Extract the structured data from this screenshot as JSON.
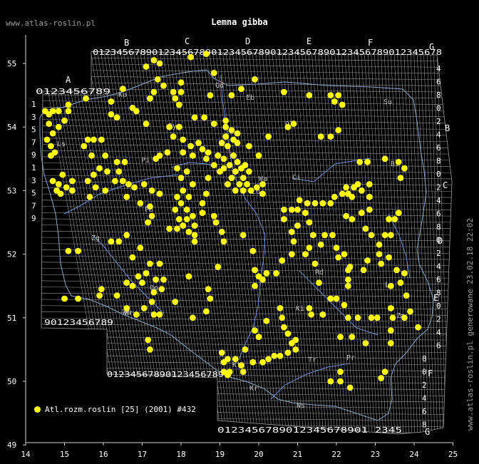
{
  "header": {
    "site": "www.atlas-roslin.pl",
    "title": "Lemna gibba"
  },
  "footer": {
    "generated": "www.atlas-roslin.pl generowane 23.02.18 22:02"
  },
  "legend": {
    "label": "Atl.rozm.roslin [25] (2001) #432"
  },
  "colors": {
    "background": "#000000",
    "grid": "#9a9a9a",
    "border": "#8aa6c8",
    "rivers": "#6f8fd0",
    "dots": "#ffff00",
    "labels": "#cfcfcf"
  },
  "axes": {
    "lon_ticks": [
      "14",
      "15",
      "16",
      "17",
      "18",
      "19",
      "20",
      "21",
      "22",
      "23",
      "24",
      "25"
    ],
    "lat_ticks": [
      "55",
      "54",
      "53",
      "52",
      "51",
      "50",
      "49"
    ]
  },
  "grid_letters": {
    "top": [
      "A",
      "B",
      "C",
      "D",
      "E",
      "F",
      "G"
    ],
    "right": [
      "B",
      "C",
      "D",
      "E",
      "F",
      "G"
    ]
  },
  "grid_digit_rows": {
    "top_A": "0123456789",
    "top_main": "01234567890123456789012345678901234567890123456789012345678",
    "left_A": "1357913579",
    "bottom_west": "90123456789",
    "bottom_B": "01234567890123456789",
    "bottom_south": "0123456789012345678901 2345",
    "right_col": "4680246802468024680246802468"
  },
  "region_labels": [
    "Ko",
    "Gd",
    "Eb",
    "Su",
    "Ol",
    "Bi",
    "Pi",
    "Ci",
    "Ło",
    "Zg",
    "Po",
    "Wr",
    "Ki",
    "Rd",
    "Kt",
    "Kr",
    "Lu",
    "Op",
    "Wb",
    "Ns",
    "Tr",
    "Pr",
    "Zm",
    "By",
    "Wa",
    "Ls"
  ],
  "chart_data": {
    "type": "scatter",
    "x_unit": "degrees east longitude",
    "y_unit": "degrees north latitude",
    "xlim": [
      14,
      25
    ],
    "ylim": [
      49,
      55.5
    ],
    "points": [
      [
        17.3,
        55.05
      ],
      [
        17.45,
        55.0
      ],
      [
        17.1,
        54.95
      ],
      [
        18.25,
        55.1
      ],
      [
        18.65,
        55.15
      ],
      [
        18.85,
        54.85
      ],
      [
        17.4,
        54.75
      ],
      [
        17.3,
        54.55
      ],
      [
        17.55,
        54.65
      ],
      [
        17.8,
        54.55
      ],
      [
        17.2,
        54.45
      ],
      [
        17.85,
        54.45
      ],
      [
        18.0,
        54.55
      ],
      [
        18.0,
        54.7
      ],
      [
        16.5,
        54.6
      ],
      [
        17.95,
        54.35
      ],
      [
        18.75,
        54.5
      ],
      [
        19.3,
        54.5
      ],
      [
        19.55,
        54.6
      ],
      [
        19.9,
        54.75
      ],
      [
        20.65,
        54.55
      ],
      [
        21.3,
        54.5
      ],
      [
        21.85,
        54.5
      ],
      [
        22.05,
        54.5
      ],
      [
        21.95,
        54.4
      ],
      [
        22.15,
        54.35
      ],
      [
        14.6,
        54.2
      ],
      [
        14.5,
        54.25
      ],
      [
        14.7,
        54.25
      ],
      [
        14.85,
        54.25
      ],
      [
        15.0,
        54.1
      ],
      [
        15.1,
        54.25
      ],
      [
        15.1,
        54.35
      ],
      [
        14.6,
        54.05
      ],
      [
        14.85,
        54.0
      ],
      [
        14.7,
        53.9
      ],
      [
        14.55,
        53.8
      ],
      [
        14.65,
        53.7
      ],
      [
        14.75,
        53.6
      ],
      [
        14.65,
        53.55
      ],
      [
        15.55,
        54.45
      ],
      [
        16.2,
        54.4
      ],
      [
        16.2,
        54.2
      ],
      [
        16.35,
        54.15
      ],
      [
        16.75,
        54.3
      ],
      [
        16.85,
        54.25
      ],
      [
        15.6,
        53.8
      ],
      [
        15.75,
        53.8
      ],
      [
        15.95,
        53.8
      ],
      [
        15.5,
        53.7
      ],
      [
        15.7,
        53.55
      ],
      [
        16.05,
        53.55
      ],
      [
        17.1,
        54.05
      ],
      [
        17.7,
        54.0
      ],
      [
        17.95,
        54.0
      ],
      [
        18.35,
        54.15
      ],
      [
        18.6,
        54.15
      ],
      [
        18.85,
        54.05
      ],
      [
        19.15,
        54.1
      ],
      [
        19.15,
        54.0
      ],
      [
        19.3,
        53.95
      ],
      [
        19.45,
        53.9
      ],
      [
        19.15,
        53.85
      ],
      [
        19.35,
        53.8
      ],
      [
        19.05,
        53.75
      ],
      [
        19.2,
        53.7
      ],
      [
        19.45,
        53.75
      ],
      [
        19.75,
        53.7
      ],
      [
        20.0,
        53.55
      ],
      [
        20.25,
        53.85
      ],
      [
        20.75,
        54.0
      ],
      [
        20.9,
        54.05
      ],
      [
        21.6,
        53.85
      ],
      [
        21.85,
        53.85
      ],
      [
        22.05,
        53.95
      ],
      [
        17.8,
        53.85
      ],
      [
        18.05,
        53.8
      ],
      [
        18.25,
        53.7
      ],
      [
        18.45,
        53.75
      ],
      [
        18.55,
        53.65
      ],
      [
        18.05,
        53.6
      ],
      [
        18.3,
        53.55
      ],
      [
        17.65,
        53.6
      ],
      [
        17.45,
        53.55
      ],
      [
        17.35,
        53.5
      ],
      [
        18.7,
        53.6
      ],
      [
        18.95,
        53.55
      ],
      [
        19.1,
        53.5
      ],
      [
        19.35,
        53.55
      ],
      [
        19.45,
        53.45
      ],
      [
        19.25,
        53.4
      ],
      [
        19.1,
        53.35
      ],
      [
        19.4,
        53.3
      ],
      [
        19.55,
        53.35
      ],
      [
        19.65,
        53.4
      ],
      [
        19.75,
        53.3
      ],
      [
        19.6,
        53.2
      ],
      [
        19.5,
        53.1
      ],
      [
        19.3,
        53.2
      ],
      [
        19.2,
        53.1
      ],
      [
        19.4,
        53.0
      ],
      [
        19.6,
        53.0
      ],
      [
        19.8,
        53.0
      ],
      [
        19.95,
        53.05
      ],
      [
        20.1,
        52.95
      ],
      [
        20.1,
        53.1
      ],
      [
        19.7,
        53.1
      ],
      [
        19.0,
        53.3
      ],
      [
        18.85,
        53.4
      ],
      [
        18.65,
        53.5
      ],
      [
        17.9,
        53.35
      ],
      [
        18.0,
        53.2
      ],
      [
        18.15,
        53.3
      ],
      [
        18.3,
        53.1
      ],
      [
        18.05,
        53.0
      ],
      [
        18.2,
        52.9
      ],
      [
        17.9,
        52.9
      ],
      [
        18.0,
        52.8
      ],
      [
        17.85,
        52.7
      ],
      [
        17.95,
        52.55
      ],
      [
        18.15,
        52.7
      ],
      [
        18.15,
        52.55
      ],
      [
        18.3,
        52.6
      ],
      [
        18.35,
        52.45
      ],
      [
        18.2,
        52.35
      ],
      [
        18.05,
        52.45
      ],
      [
        17.9,
        52.4
      ],
      [
        17.7,
        52.4
      ],
      [
        18.35,
        52.3
      ],
      [
        18.35,
        52.2
      ],
      [
        18.7,
        53.2
      ],
      [
        18.65,
        52.95
      ],
      [
        18.55,
        52.8
      ],
      [
        18.55,
        52.65
      ],
      [
        18.85,
        52.6
      ],
      [
        17.05,
        53.1
      ],
      [
        17.25,
        53.0
      ],
      [
        17.45,
        52.95
      ],
      [
        17.2,
        52.75
      ],
      [
        17.25,
        52.6
      ],
      [
        17.15,
        52.5
      ],
      [
        16.95,
        52.8
      ],
      [
        16.8,
        53.05
      ],
      [
        16.65,
        53.1
      ],
      [
        16.4,
        53.3
      ],
      [
        16.35,
        53.45
      ],
      [
        16.55,
        53.45
      ],
      [
        16.5,
        53.15
      ],
      [
        16.1,
        53.3
      ],
      [
        16.05,
        53.0
      ],
      [
        16.6,
        52.9
      ],
      [
        14.7,
        53.15
      ],
      [
        14.85,
        53.1
      ],
      [
        15.05,
        53.05
      ],
      [
        14.8,
        53.0
      ],
      [
        14.9,
        52.95
      ],
      [
        15.2,
        53.0
      ],
      [
        14.95,
        53.25
      ],
      [
        15.2,
        53.15
      ],
      [
        15.6,
        53.15
      ],
      [
        15.75,
        53.25
      ],
      [
        15.9,
        53.35
      ],
      [
        15.8,
        53.05
      ],
      [
        15.65,
        52.9
      ],
      [
        16.3,
        53.15
      ],
      [
        16.2,
        52.2
      ],
      [
        16.4,
        52.2
      ],
      [
        16.6,
        52.3
      ],
      [
        16.75,
        51.95
      ],
      [
        16.95,
        52.1
      ],
      [
        17.2,
        51.85
      ],
      [
        17.45,
        51.85
      ],
      [
        17.1,
        51.7
      ],
      [
        17.35,
        51.6
      ],
      [
        17.55,
        51.6
      ],
      [
        17.0,
        51.55
      ],
      [
        16.9,
        51.65
      ],
      [
        16.75,
        51.5
      ],
      [
        16.6,
        51.55
      ],
      [
        17.3,
        51.4
      ],
      [
        17.5,
        51.45
      ],
      [
        17.25,
        51.25
      ],
      [
        17.05,
        51.15
      ],
      [
        17.3,
        51.05
      ],
      [
        17.45,
        51.05
      ],
      [
        16.85,
        51.05
      ],
      [
        16.6,
        51.15
      ],
      [
        16.35,
        51.35
      ],
      [
        15.9,
        51.35
      ],
      [
        15.95,
        51.45
      ],
      [
        15.0,
        51.3
      ],
      [
        15.35,
        51.3
      ],
      [
        15.1,
        52.05
      ],
      [
        15.35,
        52.05
      ],
      [
        17.15,
        50.65
      ],
      [
        17.2,
        50.5
      ],
      [
        18.3,
        51.0
      ],
      [
        18.65,
        51.1
      ],
      [
        18.75,
        51.3
      ],
      [
        18.7,
        51.45
      ],
      [
        18.2,
        51.65
      ],
      [
        17.85,
        51.25
      ],
      [
        19.05,
        50.45
      ],
      [
        19.1,
        50.3
      ],
      [
        19.2,
        50.35
      ],
      [
        19.4,
        50.35
      ],
      [
        19.55,
        50.25
      ],
      [
        19.6,
        50.15
      ],
      [
        19.1,
        50.15
      ],
      [
        19.2,
        50.1
      ],
      [
        19.25,
        50.15
      ],
      [
        19.85,
        50.3
      ],
      [
        20.1,
        50.3
      ],
      [
        20.25,
        50.35
      ],
      [
        20.4,
        50.4
      ],
      [
        20.55,
        50.4
      ],
      [
        20.75,
        50.45
      ],
      [
        20.95,
        50.5
      ],
      [
        19.65,
        50.5
      ],
      [
        20.0,
        50.7
      ],
      [
        19.9,
        50.8
      ],
      [
        20.2,
        50.95
      ],
      [
        20.6,
        51.0
      ],
      [
        20.65,
        50.85
      ],
      [
        20.75,
        50.75
      ],
      [
        20.85,
        50.6
      ],
      [
        20.95,
        50.65
      ],
      [
        20.55,
        51.15
      ],
      [
        20.1,
        51.6
      ],
      [
        20.6,
        51.9
      ],
      [
        20.85,
        52.0
      ],
      [
        21.2,
        52.0
      ],
      [
        21.3,
        52.1
      ],
      [
        21.45,
        51.85
      ],
      [
        21.55,
        51.55
      ],
      [
        21.3,
        51.15
      ],
      [
        21.35,
        51.05
      ],
      [
        21.65,
        51.05
      ],
      [
        21.85,
        51.3
      ],
      [
        22.0,
        51.3
      ],
      [
        22.2,
        51.2
      ],
      [
        22.3,
        51.0
      ],
      [
        22.55,
        51.0
      ],
      [
        22.9,
        51.0
      ],
      [
        23.05,
        51.0
      ],
      [
        22.1,
        50.7
      ],
      [
        22.4,
        50.7
      ],
      [
        22.75,
        50.6
      ],
      [
        20.85,
        52.35
      ],
      [
        21.0,
        52.45
      ],
      [
        21.2,
        52.65
      ],
      [
        21.3,
        52.5
      ],
      [
        21.4,
        52.3
      ],
      [
        20.65,
        52.55
      ],
      [
        20.65,
        52.7
      ],
      [
        20.85,
        52.7
      ],
      [
        21.0,
        52.7
      ],
      [
        21.05,
        52.85
      ],
      [
        21.25,
        52.8
      ],
      [
        21.45,
        52.8
      ],
      [
        21.65,
        52.8
      ],
      [
        21.85,
        52.8
      ],
      [
        21.95,
        52.9
      ],
      [
        22.15,
        52.95
      ],
      [
        22.3,
        52.95
      ],
      [
        22.4,
        52.9
      ],
      [
        22.25,
        53.05
      ],
      [
        22.45,
        53.05
      ],
      [
        22.65,
        53.0
      ],
      [
        22.85,
        52.9
      ],
      [
        22.85,
        52.7
      ],
      [
        22.65,
        52.65
      ],
      [
        22.4,
        52.55
      ],
      [
        22.25,
        52.6
      ],
      [
        22.75,
        52.4
      ],
      [
        22.9,
        52.3
      ],
      [
        23.1,
        52.15
      ],
      [
        23.25,
        52.3
      ],
      [
        23.4,
        52.3
      ],
      [
        23.35,
        52.55
      ],
      [
        23.5,
        52.55
      ],
      [
        23.6,
        52.65
      ],
      [
        23.65,
        53.2
      ],
      [
        23.6,
        53.45
      ],
      [
        23.75,
        53.35
      ],
      [
        23.25,
        53.5
      ],
      [
        22.6,
        53.45
      ],
      [
        22.8,
        53.45
      ],
      [
        22.55,
        53.1
      ],
      [
        22.85,
        53.1
      ],
      [
        22.2,
        52.0
      ],
      [
        22.3,
        51.75
      ],
      [
        22.3,
        51.6
      ],
      [
        22.3,
        51.5
      ],
      [
        22.35,
        51.8
      ],
      [
        22.7,
        51.75
      ],
      [
        22.8,
        51.9
      ],
      [
        23.1,
        52.0
      ],
      [
        23.15,
        51.85
      ],
      [
        23.35,
        51.95
      ],
      [
        23.55,
        51.75
      ],
      [
        23.75,
        51.7
      ],
      [
        23.65,
        51.55
      ],
      [
        23.4,
        51.5
      ],
      [
        23.8,
        51.35
      ],
      [
        23.9,
        51.1
      ],
      [
        23.75,
        51.0
      ],
      [
        23.45,
        51.0
      ],
      [
        23.4,
        51.15
      ],
      [
        23.4,
        50.8
      ],
      [
        23.4,
        50.6
      ],
      [
        24.1,
        50.85
      ],
      [
        23.15,
        50.05
      ],
      [
        23.25,
        50.15
      ],
      [
        22.35,
        49.9
      ],
      [
        22.1,
        50.0
      ],
      [
        22.1,
        50.15
      ],
      [
        21.85,
        50.0
      ],
      [
        19.9,
        51.5
      ],
      [
        20.0,
        51.65
      ],
      [
        20.2,
        51.7
      ],
      [
        20.45,
        51.7
      ],
      [
        20.9,
        52.2
      ],
      [
        21.6,
        52.15
      ],
      [
        21.7,
        52.3
      ],
      [
        21.9,
        52.3
      ],
      [
        22.0,
        52.1
      ],
      [
        22.05,
        51.95
      ],
      [
        19.05,
        52.35
      ],
      [
        18.9,
        52.5
      ],
      [
        19.1,
        52.2
      ],
      [
        19.6,
        52.3
      ],
      [
        19.85,
        52.05
      ],
      [
        19.9,
        51.75
      ],
      [
        18.95,
        51.8
      ]
    ]
  }
}
